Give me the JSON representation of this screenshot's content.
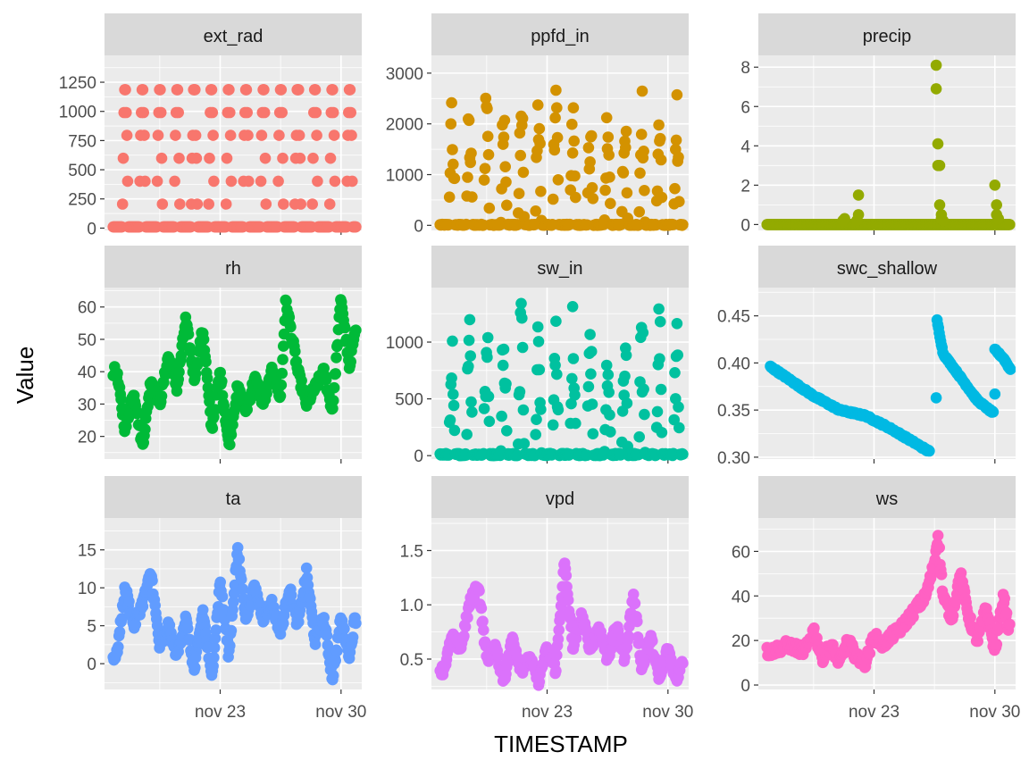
{
  "figure": {
    "xlabel": "TIMESTAMP",
    "ylabel": "Value"
  },
  "chart_data": [
    {
      "type": "scatter",
      "title": "ext_rad",
      "color": "#F8766D",
      "ylim": [
        -20,
        1480
      ],
      "yticks": [
        0,
        250,
        500,
        750,
        1000,
        1250
      ],
      "xticks": [
        {
          "label": "nov 23",
          "day": 23
        },
        {
          "label": "nov 30",
          "day": 30
        }
      ],
      "pattern": "solar",
      "amplitude": 1200,
      "noise": 0
    },
    {
      "type": "scatter",
      "title": "ppfd_in",
      "color": "#D39200",
      "ylim": [
        -100,
        3350
      ],
      "yticks": [
        0,
        1000,
        2000,
        3000
      ],
      "xticks": [
        {
          "label": "nov 23",
          "day": 23
        },
        {
          "label": "nov 30",
          "day": 30
        }
      ],
      "pattern": "solar-cloudy",
      "amplitude": 2850,
      "noise": 0.6
    },
    {
      "type": "scatter",
      "title": "precip",
      "color": "#93AA00",
      "ylim": [
        -0.3,
        8.6
      ],
      "yticks": [
        0,
        2,
        4,
        6,
        8
      ],
      "xticks": [
        {
          "label": "nov 23",
          "day": 23
        },
        {
          "label": "nov 30",
          "day": 30
        }
      ],
      "pattern": "events",
      "points": [
        [
          21.2,
          0.2
        ],
        [
          21.3,
          0.3
        ],
        [
          22.0,
          0.2
        ],
        [
          22.1,
          0.5
        ],
        [
          22.1,
          1.5
        ],
        [
          26.6,
          8.1
        ],
        [
          26.6,
          6.9
        ],
        [
          26.7,
          4.1
        ],
        [
          26.7,
          3.0
        ],
        [
          26.8,
          3.0
        ],
        [
          26.8,
          1.0
        ],
        [
          26.9,
          0.5
        ],
        [
          26.9,
          0.3
        ],
        [
          27.0,
          0.2
        ],
        [
          30.0,
          2.0
        ],
        [
          30.1,
          1.0
        ],
        [
          30.1,
          0.5
        ],
        [
          30.2,
          0.3
        ]
      ]
    },
    {
      "type": "scatter",
      "title": "rh",
      "color": "#00BA38",
      "ylim": [
        13,
        66
      ],
      "yticks": [
        20,
        30,
        40,
        50,
        60
      ],
      "xticks": [
        {
          "label": "nov 23",
          "day": 23
        },
        {
          "label": "nov 30",
          "day": 30
        }
      ],
      "pattern": "daily-wave",
      "points": [
        [
          17.0,
          40
        ],
        [
          17.5,
          22
        ],
        [
          18.0,
          34
        ],
        [
          18.5,
          17
        ],
        [
          19.0,
          38
        ],
        [
          19.5,
          30
        ],
        [
          20.0,
          45
        ],
        [
          20.5,
          35
        ],
        [
          21.0,
          56
        ],
        [
          21.5,
          38
        ],
        [
          22.0,
          53
        ],
        [
          22.5,
          22
        ],
        [
          23.0,
          40
        ],
        [
          23.5,
          17
        ],
        [
          24.0,
          35
        ],
        [
          24.5,
          28
        ],
        [
          25.0,
          38
        ],
        [
          25.5,
          30
        ],
        [
          26.0,
          40
        ],
        [
          26.5,
          32
        ],
        [
          26.8,
          62
        ],
        [
          27.5,
          40
        ],
        [
          28.0,
          30
        ],
        [
          28.5,
          35
        ],
        [
          29.0,
          40
        ],
        [
          29.5,
          28
        ],
        [
          30.0,
          63
        ],
        [
          30.5,
          40
        ],
        [
          30.8,
          54
        ]
      ]
    },
    {
      "type": "scatter",
      "title": "sw_in",
      "color": "#00C19F",
      "ylim": [
        -30,
        1480
      ],
      "yticks": [
        0,
        500,
        1000
      ],
      "xticks": [
        {
          "label": "nov 23",
          "day": 23
        },
        {
          "label": "nov 30",
          "day": 30
        }
      ],
      "pattern": "solar-cloudy",
      "amplitude": 1350,
      "noise": 0.6
    },
    {
      "type": "scatter",
      "title": "swc_shallow",
      "color": "#00B9E3",
      "ylim": [
        0.298,
        0.48
      ],
      "yticks": [
        0.3,
        0.35,
        0.4,
        0.45
      ],
      "ytickfmt": 2,
      "xticks": [
        {
          "label": "nov 23",
          "day": 23
        },
        {
          "label": "nov 30",
          "day": 30
        }
      ],
      "pattern": "segments",
      "segments": [
        {
          "x": [
            17.0,
            19.5,
            21.0,
            22.5,
            24.0,
            26.2
          ],
          "y": [
            0.396,
            0.365,
            0.35,
            0.344,
            0.33,
            0.306
          ]
        },
        {
          "x": [
            26.65,
            27.0,
            28.0,
            29.0,
            29.9
          ],
          "y": [
            0.445,
            0.41,
            0.385,
            0.36,
            0.347
          ]
        },
        {
          "x": [
            30.0,
            30.5,
            30.9
          ],
          "y": [
            0.414,
            0.405,
            0.393
          ]
        }
      ],
      "points": [
        [
          26.6,
          0.363
        ],
        [
          30.0,
          0.367
        ]
      ]
    },
    {
      "type": "scatter",
      "title": "ta",
      "color": "#619CFF",
      "ylim": [
        -3.4,
        19.2
      ],
      "yticks": [
        0,
        5,
        10,
        15
      ],
      "xticks": [
        {
          "label": "nov 23",
          "day": 23
        },
        {
          "label": "nov 30",
          "day": 30
        }
      ],
      "pattern": "daily-wave",
      "points": [
        [
          17.0,
          1
        ],
        [
          17.5,
          10
        ],
        [
          18.0,
          5
        ],
        [
          18.5,
          8
        ],
        [
          19.0,
          12
        ],
        [
          19.5,
          2
        ],
        [
          20.0,
          5
        ],
        [
          20.5,
          1
        ],
        [
          21.0,
          6
        ],
        [
          21.5,
          -1
        ],
        [
          22.0,
          7
        ],
        [
          22.5,
          -2
        ],
        [
          23.0,
          11
        ],
        [
          23.5,
          1
        ],
        [
          24.0,
          15
        ],
        [
          24.5,
          6
        ],
        [
          25.0,
          10
        ],
        [
          25.5,
          6
        ],
        [
          26.0,
          8
        ],
        [
          26.5,
          4
        ],
        [
          27.0,
          10
        ],
        [
          27.5,
          5
        ],
        [
          28.0,
          12
        ],
        [
          28.5,
          3
        ],
        [
          29.0,
          6
        ],
        [
          29.5,
          -2
        ],
        [
          30.0,
          6
        ],
        [
          30.5,
          1
        ],
        [
          30.8,
          6
        ]
      ]
    },
    {
      "type": "scatter",
      "title": "vpd",
      "color": "#DB72FB",
      "ylim": [
        0.22,
        1.8
      ],
      "yticks": [
        0.5,
        1.0,
        1.5
      ],
      "ytickfmt": 1,
      "xticks": [
        {
          "label": "nov 23",
          "day": 23
        },
        {
          "label": "nov 30",
          "day": 30
        }
      ],
      "pattern": "daily-wave",
      "points": [
        [
          17.0,
          0.4
        ],
        [
          17.5,
          0.7
        ],
        [
          18.0,
          0.6
        ],
        [
          18.5,
          1.0
        ],
        [
          19.0,
          1.2
        ],
        [
          19.5,
          0.5
        ],
        [
          20.0,
          0.6
        ],
        [
          20.5,
          0.3
        ],
        [
          21.0,
          0.7
        ],
        [
          21.5,
          0.4
        ],
        [
          22.0,
          0.5
        ],
        [
          22.5,
          0.3
        ],
        [
          23.0,
          0.6
        ],
        [
          23.5,
          0.4
        ],
        [
          24.0,
          1.4
        ],
        [
          24.5,
          0.6
        ],
        [
          25.0,
          0.9
        ],
        [
          25.5,
          0.6
        ],
        [
          26.0,
          0.8
        ],
        [
          26.5,
          0.5
        ],
        [
          27.0,
          0.8
        ],
        [
          27.5,
          0.5
        ],
        [
          28.0,
          1.1
        ],
        [
          28.5,
          0.4
        ],
        [
          29.0,
          0.7
        ],
        [
          29.5,
          0.3
        ],
        [
          30.0,
          0.6
        ],
        [
          30.5,
          0.3
        ],
        [
          30.8,
          0.5
        ]
      ]
    },
    {
      "type": "scatter",
      "title": "ws",
      "color": "#FF61C3",
      "ylim": [
        -2,
        75
      ],
      "yticks": [
        0,
        20,
        40,
        60
      ],
      "xticks": [
        {
          "label": "nov 23",
          "day": 23
        },
        {
          "label": "nov 30",
          "day": 30
        }
      ],
      "pattern": "daily-wave",
      "points": [
        [
          17.0,
          15
        ],
        [
          18.0,
          18
        ],
        [
          19.0,
          15
        ],
        [
          19.5,
          25
        ],
        [
          20.0,
          12
        ],
        [
          20.5,
          18
        ],
        [
          21.0,
          10
        ],
        [
          21.5,
          20
        ],
        [
          22.0,
          12
        ],
        [
          22.5,
          10
        ],
        [
          23.0,
          22
        ],
        [
          23.5,
          18
        ],
        [
          24.0,
          22
        ],
        [
          24.5,
          25
        ],
        [
          25.0,
          30
        ],
        [
          25.5,
          35
        ],
        [
          26.0,
          40
        ],
        [
          26.5,
          55
        ],
        [
          26.7,
          68
        ],
        [
          27.0,
          40
        ],
        [
          27.5,
          30
        ],
        [
          28.0,
          50
        ],
        [
          28.5,
          30
        ],
        [
          29.0,
          20
        ],
        [
          29.5,
          35
        ],
        [
          30.0,
          15
        ],
        [
          30.5,
          40
        ],
        [
          30.8,
          25
        ]
      ]
    }
  ]
}
